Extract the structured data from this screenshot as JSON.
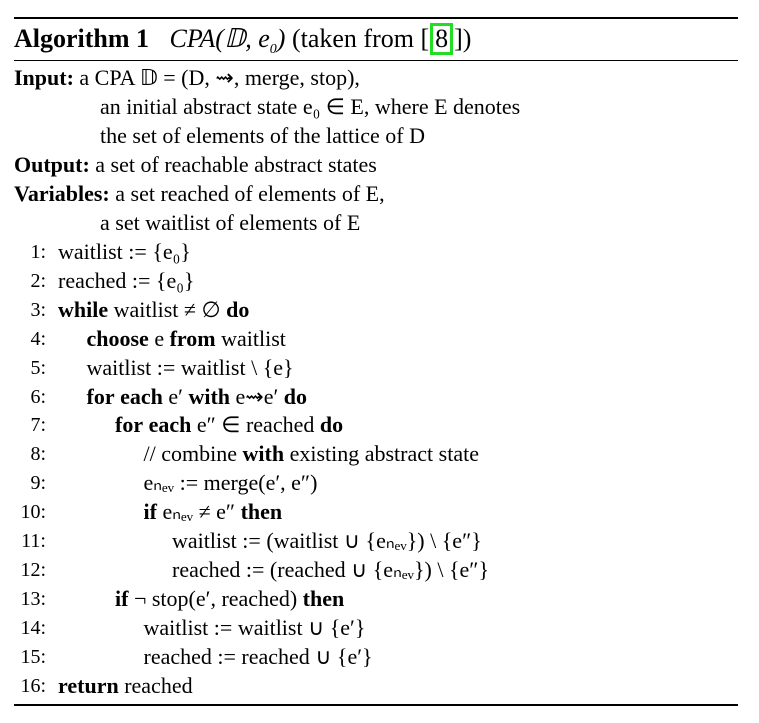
{
  "algorithm": {
    "label": "Algorithm 1",
    "name": "CPA(𝔻, e",
    "name_sub": "0",
    "name_close": ")",
    "taken_from_prefix": "(taken from [",
    "citation": "8",
    "taken_from_suffix": "])"
  },
  "header": {
    "input_label": "Input:",
    "input_lines": [
      "a CPA 𝔻 = (D, ⇝, merge, stop),",
      "an initial abstract state e₀ ∈ E, where E denotes",
      "the set of elements of the lattice of D"
    ],
    "output_label": "Output:",
    "output_text": "a set of reachable abstract states",
    "variables_label": "Variables:",
    "variables_lines": [
      "a set reached of elements of E,",
      "a set waitlist of elements of E"
    ]
  },
  "code_lines": [
    {
      "n": "1:",
      "text": "waitlist := {e₀}"
    },
    {
      "n": "2:",
      "text": "reached := {e₀}"
    },
    {
      "n": "3:",
      "text": "while waitlist ≠ ∅ do"
    },
    {
      "n": "4:",
      "text": "choose e from waitlist"
    },
    {
      "n": "5:",
      "text": "waitlist := waitlist \\ {e}"
    },
    {
      "n": "6:",
      "text": "for each e′ with e⇝e′ do"
    },
    {
      "n": "7:",
      "text": "for each e″ ∈ reached do"
    },
    {
      "n": "8:",
      "text": "// combine with existing abstract state"
    },
    {
      "n": "9:",
      "text": "eₙₑᵥ := merge(e′, e″)"
    },
    {
      "n": "10:",
      "text": "if eₙₑᵥ ≠ e″ then"
    },
    {
      "n": "11:",
      "text": "waitlist := (waitlist ∪ {eₙₑᵥ}) \\ {e″}"
    },
    {
      "n": "12:",
      "text": "reached := (reached ∪ {eₙₑᵥ}) \\ {e″}"
    },
    {
      "n": "13:",
      "text": "if ¬ stop(e′, reached) then"
    },
    {
      "n": "14:",
      "text": "waitlist := waitlist ∪ {e′}"
    },
    {
      "n": "15:",
      "text": "reached := reached ∪ {e′}"
    },
    {
      "n": "16:",
      "text": "return reached"
    }
  ]
}
